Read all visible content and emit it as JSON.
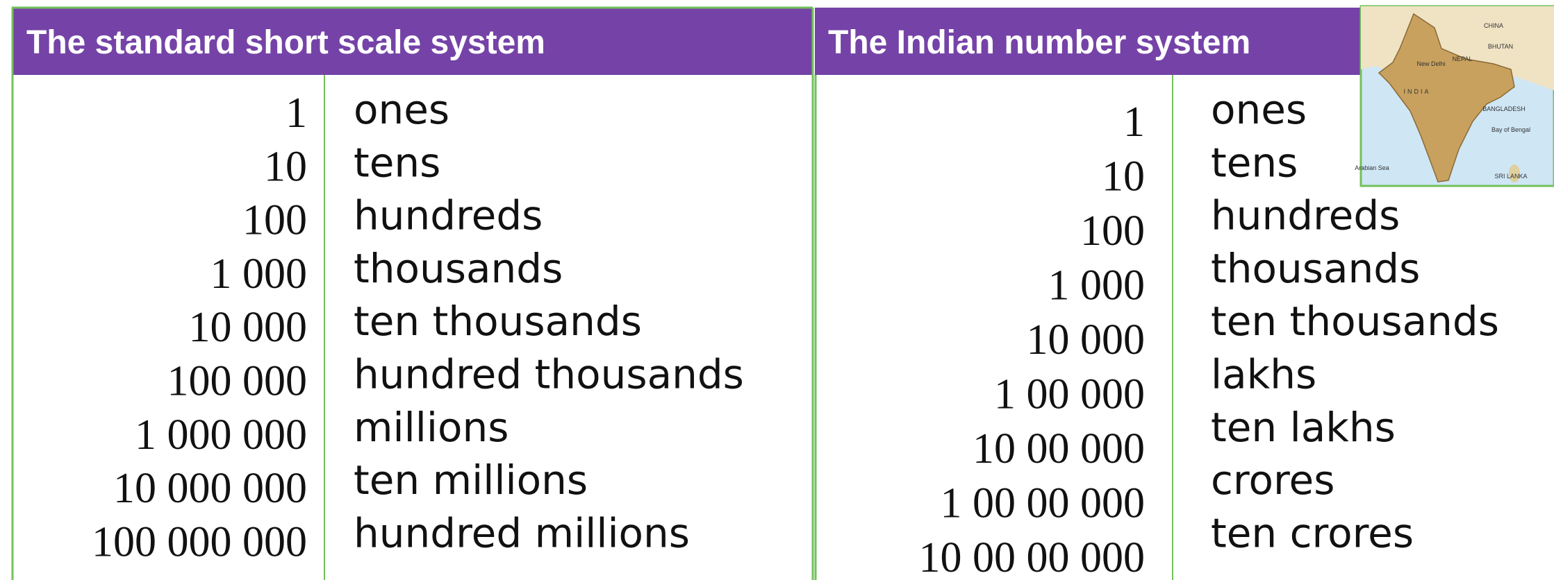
{
  "left": {
    "title": "The standard short scale system",
    "numbers": [
      "1",
      "10",
      "100",
      "1 000",
      "10 000",
      "100 000",
      "1 000 000",
      "10 000 000",
      "100 000 000"
    ],
    "words": [
      "ones",
      "tens",
      "hundreds",
      "thousands",
      "ten thousands",
      "hundred thousands",
      "millions",
      "ten millions",
      "hundred millions"
    ]
  },
  "right": {
    "title": "The Indian number system",
    "numbers": [
      "1",
      "10",
      "100",
      "1 000",
      "10 000",
      "1 00 000",
      "10 00 000",
      "1 00 00 000",
      "10 00 00 000"
    ],
    "words": [
      "ones",
      "tens",
      "hundreds",
      "thousands",
      "ten thousands",
      "lakhs",
      "ten lakhs",
      "crores",
      "ten crores"
    ]
  },
  "map": {
    "labels": [
      "CHINA",
      "BHUTAN",
      "NEPAL",
      "INDIA",
      "BANGLADESH",
      "New Delhi",
      "Bay of Bengal",
      "Arabian Sea",
      "SRI LANKA"
    ]
  }
}
